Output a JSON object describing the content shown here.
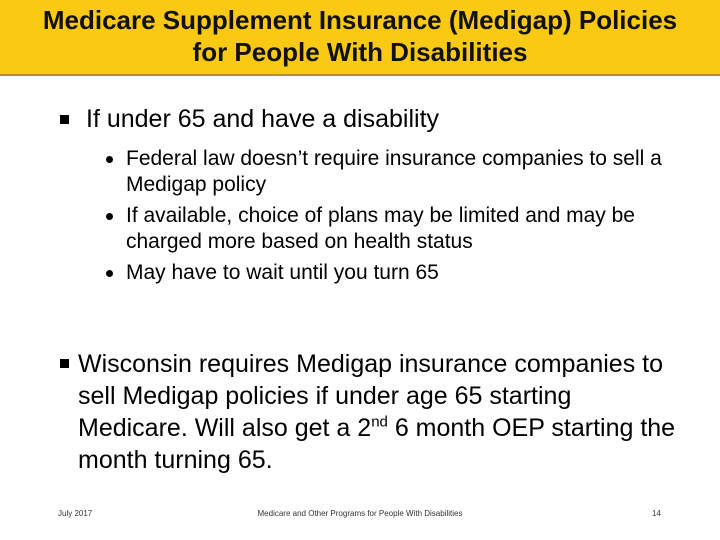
{
  "header": {
    "title_line1": "Medicare Supplement Insurance (Medigap) Policies",
    "title_line2": "for People With Disabilities"
  },
  "bullets": {
    "first": "If under 65 and have a disability",
    "sub": [
      "Federal law doesn’t require insurance companies to sell a Medigap policy",
      "If available, choice of plans may be limited and may be charged more based on health status",
      "May have to wait until you turn 65"
    ],
    "second_before_sup": "Wisconsin requires Medigap insurance companies to sell Medigap policies if  under age 65 starting Medicare.  Will also get a 2",
    "second_sup": "nd",
    "second_after_sup": "6 month OEP starting the month turning 65."
  },
  "footer": {
    "date": "July 2017",
    "center": "Medicare and Other Programs for People With Disabilities",
    "page": "14"
  },
  "colors": {
    "header_bg": "#f9c913",
    "header_border": "#b7922a"
  }
}
